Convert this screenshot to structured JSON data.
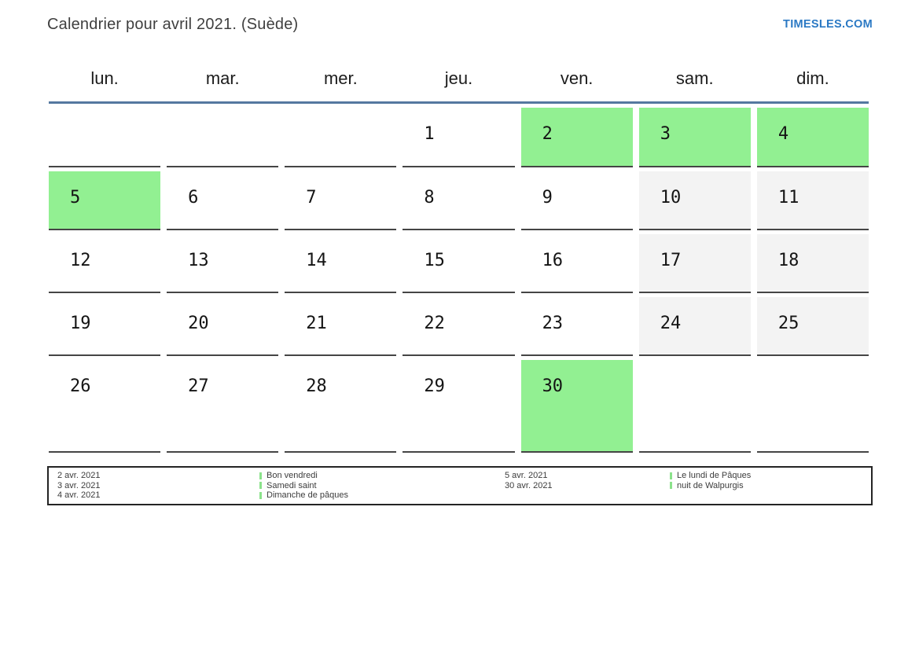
{
  "page": {
    "title": "Calendrier pour avril 2021. (Suède)",
    "brand": "TIMESLES.COM"
  },
  "colors": {
    "holiday_green": "#92f092",
    "weekend_gray": "#f3f3f3",
    "header_line_blue": "#5578a0",
    "brand_blue": "#2b79c4",
    "legend_marker_green": "#8be28b",
    "cell_border": "#454545"
  },
  "calendar": {
    "weekdays": [
      "lun.",
      "mar.",
      "mer.",
      "jeu.",
      "ven.",
      "sam.",
      "dim."
    ],
    "weeks": [
      [
        {
          "day": "",
          "type": "empty"
        },
        {
          "day": "",
          "type": "empty"
        },
        {
          "day": "",
          "type": "empty"
        },
        {
          "day": "1",
          "type": "normal"
        },
        {
          "day": "2",
          "type": "holiday"
        },
        {
          "day": "3",
          "type": "holiday"
        },
        {
          "day": "4",
          "type": "holiday"
        }
      ],
      [
        {
          "day": "5",
          "type": "holiday"
        },
        {
          "day": "6",
          "type": "normal"
        },
        {
          "day": "7",
          "type": "normal"
        },
        {
          "day": "8",
          "type": "normal"
        },
        {
          "day": "9",
          "type": "normal"
        },
        {
          "day": "10",
          "type": "weekend"
        },
        {
          "day": "11",
          "type": "weekend"
        }
      ],
      [
        {
          "day": "12",
          "type": "normal"
        },
        {
          "day": "13",
          "type": "normal"
        },
        {
          "day": "14",
          "type": "normal"
        },
        {
          "day": "15",
          "type": "normal"
        },
        {
          "day": "16",
          "type": "normal"
        },
        {
          "day": "17",
          "type": "weekend"
        },
        {
          "day": "18",
          "type": "weekend"
        }
      ],
      [
        {
          "day": "19",
          "type": "normal"
        },
        {
          "day": "20",
          "type": "normal"
        },
        {
          "day": "21",
          "type": "normal"
        },
        {
          "day": "22",
          "type": "normal"
        },
        {
          "day": "23",
          "type": "normal"
        },
        {
          "day": "24",
          "type": "weekend"
        },
        {
          "day": "25",
          "type": "weekend"
        }
      ],
      [
        {
          "day": "26",
          "type": "normal"
        },
        {
          "day": "27",
          "type": "normal"
        },
        {
          "day": "28",
          "type": "normal"
        },
        {
          "day": "29",
          "type": "normal"
        },
        {
          "day": "30",
          "type": "holiday"
        },
        {
          "day": "",
          "type": "empty"
        },
        {
          "day": "",
          "type": "empty"
        }
      ]
    ]
  },
  "legend": {
    "groups": [
      {
        "dates": [
          "2 avr. 2021",
          "3 avr. 2021",
          "4 avr. 2021"
        ],
        "events": [
          "Bon vendredi",
          "Samedi saint",
          "Dimanche de pâques"
        ]
      },
      {
        "dates": [
          "5 avr. 2021",
          "30 avr. 2021"
        ],
        "events": [
          "Le lundi de Pâques",
          "nuit de Walpurgis"
        ]
      }
    ]
  }
}
